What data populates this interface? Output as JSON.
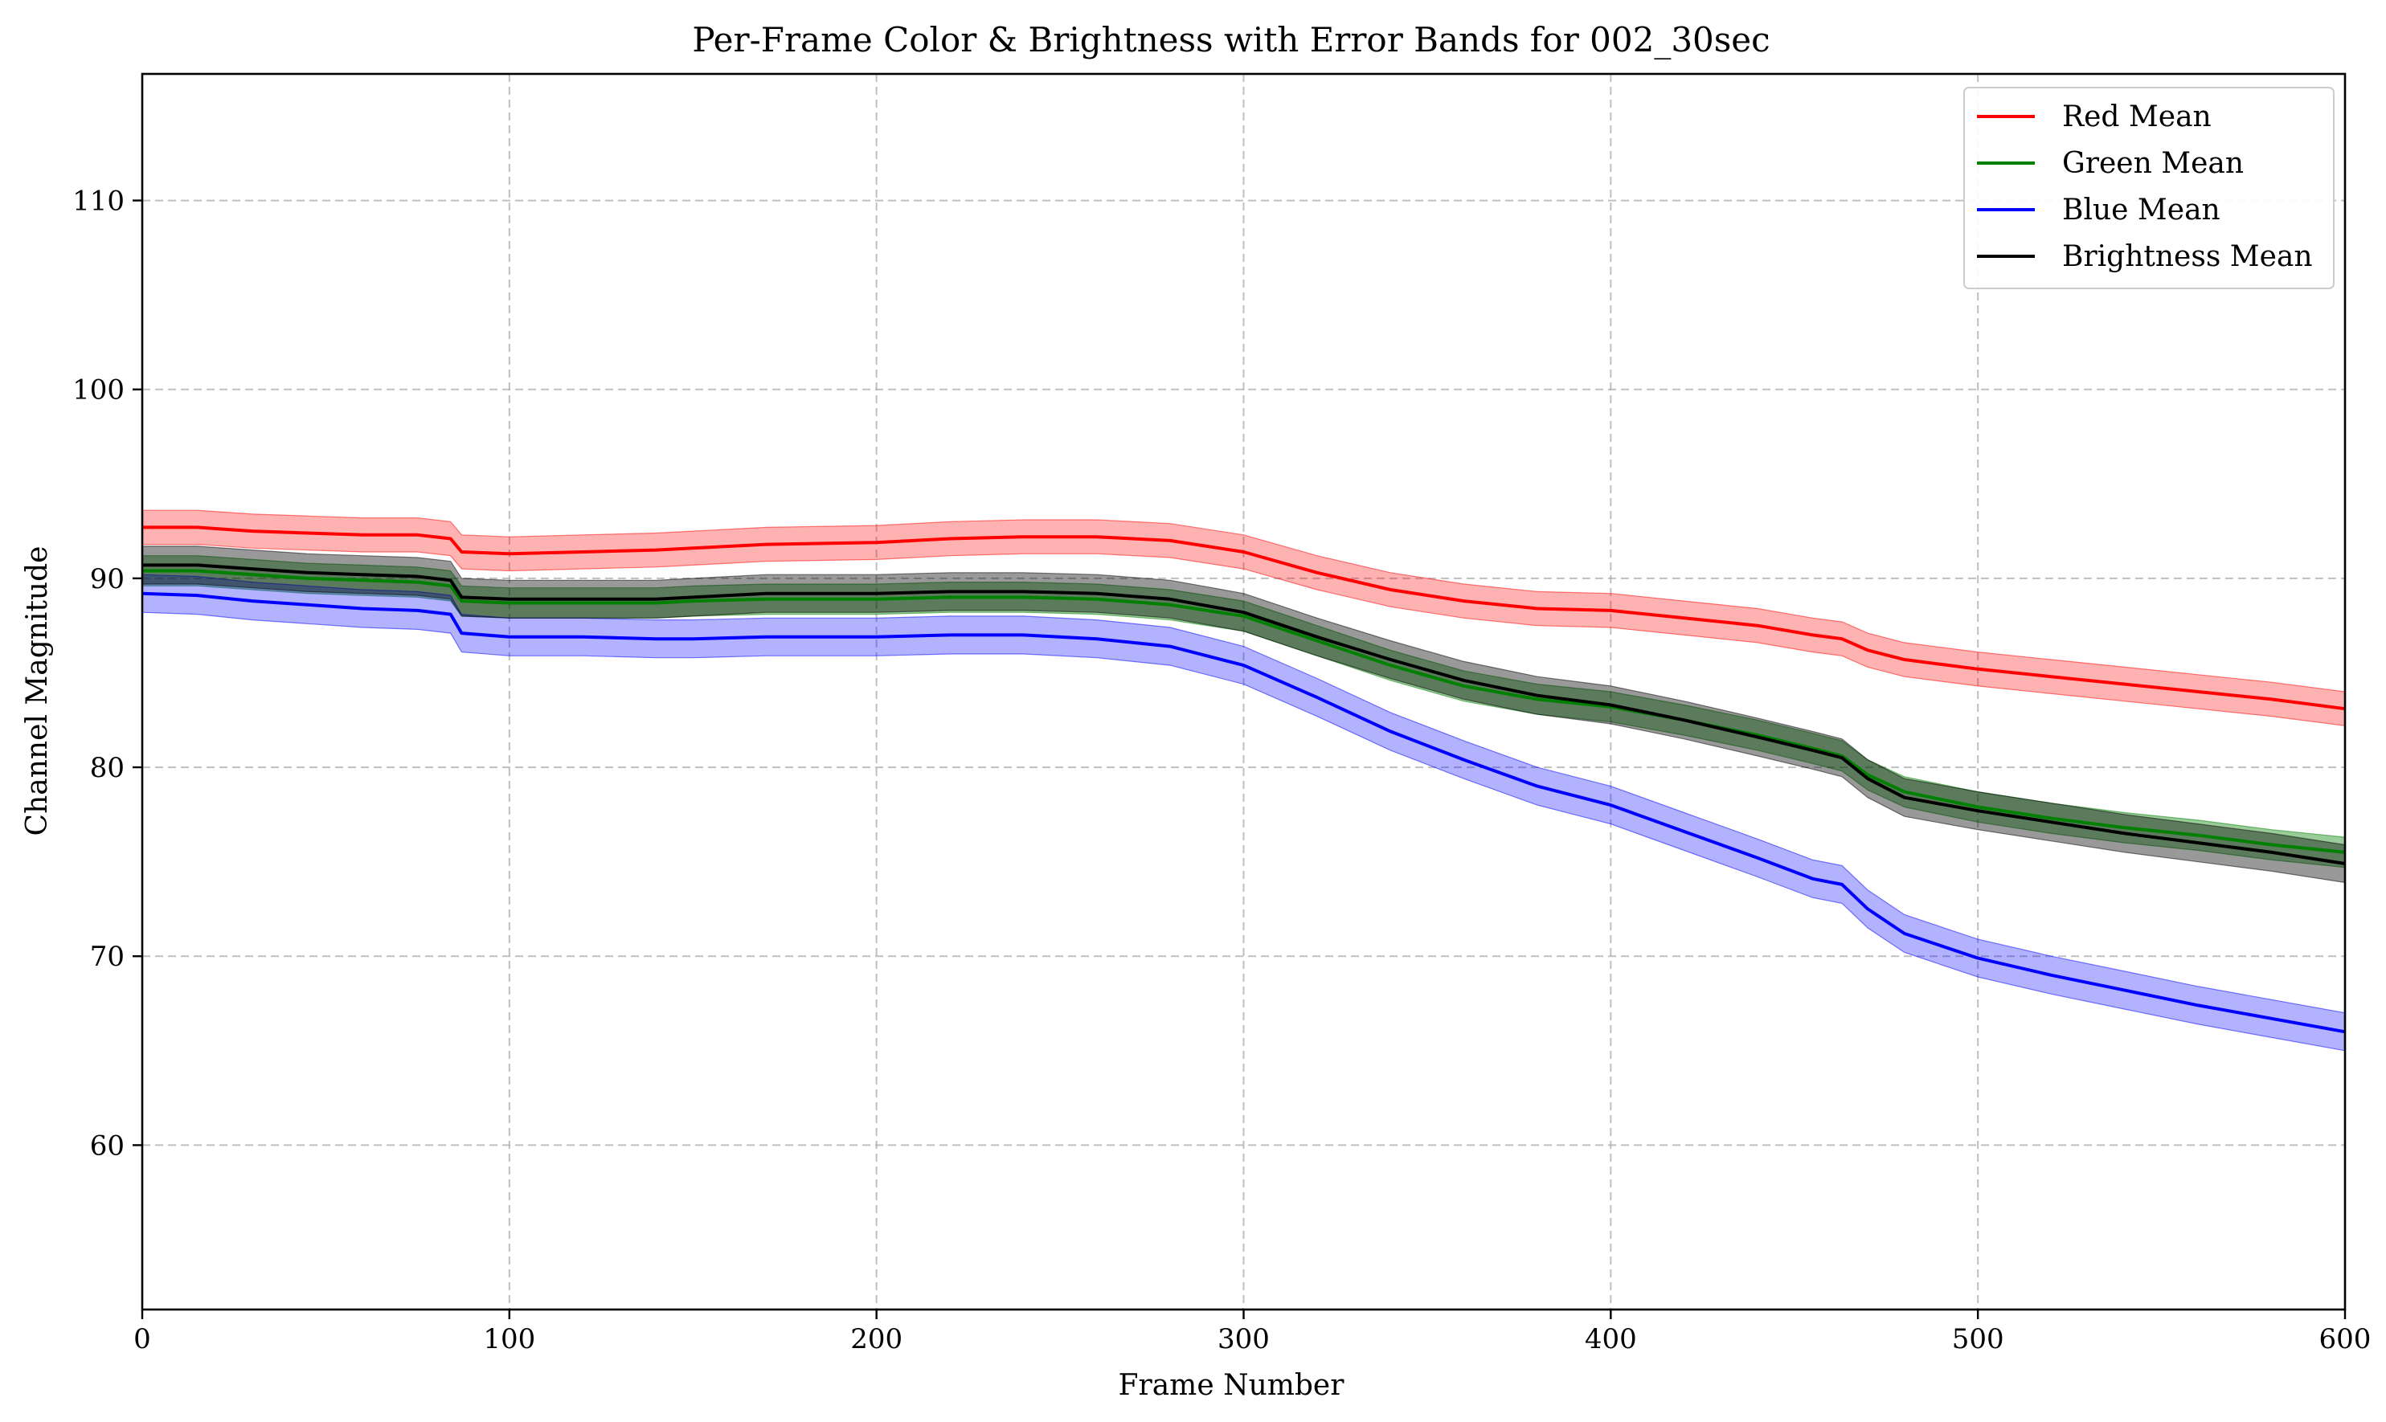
{
  "chart_data": {
    "type": "line",
    "title": "Per-Frame Color & Brightness with Error Bands for 002_30sec",
    "xlabel": "Frame Number",
    "ylabel": "Channel Magnitude",
    "xlim": [
      0,
      600
    ],
    "ylim": [
      51.3,
      116.7
    ],
    "xticks": [
      0,
      100,
      200,
      300,
      400,
      500,
      600
    ],
    "yticks": [
      60,
      70,
      80,
      90,
      100,
      110
    ],
    "grid": true,
    "legend_position": "top-right",
    "series": [
      {
        "name": "Red Mean",
        "color": "#ff0000",
        "band_alpha": 0.3,
        "x": [
          0,
          15,
          30,
          45,
          60,
          75,
          84,
          87,
          100,
          120,
          140,
          150,
          170,
          200,
          220,
          240,
          260,
          280,
          300,
          320,
          340,
          360,
          380,
          400,
          420,
          440,
          455,
          463,
          470,
          480,
          500,
          520,
          540,
          560,
          580,
          600
        ],
        "y": [
          92.7,
          92.7,
          92.5,
          92.4,
          92.3,
          92.3,
          92.1,
          91.4,
          91.3,
          91.4,
          91.5,
          91.6,
          91.8,
          91.9,
          92.1,
          92.2,
          92.2,
          92.0,
          91.4,
          90.3,
          89.4,
          88.8,
          88.4,
          88.3,
          87.9,
          87.5,
          87.0,
          86.8,
          86.2,
          85.7,
          85.2,
          84.8,
          84.4,
          84.0,
          83.6,
          83.1
        ],
        "err": [
          0.9,
          0.9,
          0.9,
          0.9,
          0.9,
          0.9,
          0.9,
          0.9,
          0.9,
          0.9,
          0.9,
          0.9,
          0.9,
          0.9,
          0.9,
          0.9,
          0.9,
          0.9,
          0.9,
          0.9,
          0.9,
          0.9,
          0.9,
          0.9,
          0.9,
          0.9,
          0.9,
          0.9,
          0.9,
          0.9,
          0.9,
          0.9,
          0.9,
          0.9,
          0.9,
          0.9
        ]
      },
      {
        "name": "Green Mean",
        "color": "#008000",
        "band_alpha": 0.4,
        "x": [
          0,
          15,
          30,
          45,
          60,
          75,
          84,
          87,
          100,
          120,
          140,
          150,
          170,
          200,
          220,
          240,
          260,
          280,
          300,
          320,
          340,
          360,
          380,
          400,
          420,
          440,
          455,
          463,
          470,
          480,
          500,
          520,
          540,
          560,
          580,
          600
        ],
        "y": [
          90.4,
          90.4,
          90.2,
          90.0,
          89.9,
          89.8,
          89.6,
          88.8,
          88.7,
          88.7,
          88.7,
          88.8,
          88.9,
          88.9,
          89.0,
          89.0,
          88.9,
          88.6,
          88.0,
          86.7,
          85.4,
          84.3,
          83.6,
          83.2,
          82.5,
          81.7,
          81.0,
          80.6,
          79.6,
          78.7,
          77.9,
          77.3,
          76.8,
          76.4,
          75.9,
          75.5
        ],
        "err": [
          0.8,
          0.8,
          0.8,
          0.8,
          0.8,
          0.8,
          0.8,
          0.8,
          0.8,
          0.8,
          0.8,
          0.8,
          0.8,
          0.8,
          0.8,
          0.8,
          0.8,
          0.8,
          0.8,
          0.8,
          0.8,
          0.8,
          0.8,
          0.8,
          0.8,
          0.8,
          0.8,
          0.8,
          0.8,
          0.8,
          0.8,
          0.8,
          0.8,
          0.8,
          0.8,
          0.8
        ]
      },
      {
        "name": "Blue Mean",
        "color": "#0000ff",
        "band_alpha": 0.3,
        "x": [
          0,
          15,
          30,
          45,
          60,
          75,
          84,
          87,
          100,
          120,
          140,
          150,
          170,
          200,
          220,
          240,
          260,
          280,
          300,
          320,
          340,
          360,
          380,
          400,
          420,
          440,
          455,
          463,
          470,
          480,
          500,
          520,
          540,
          560,
          580,
          600
        ],
        "y": [
          89.2,
          89.1,
          88.8,
          88.6,
          88.4,
          88.3,
          88.1,
          87.1,
          86.9,
          86.9,
          86.8,
          86.8,
          86.9,
          86.9,
          87.0,
          87.0,
          86.8,
          86.4,
          85.4,
          83.7,
          81.9,
          80.4,
          79.0,
          78.0,
          76.6,
          75.2,
          74.1,
          73.8,
          72.5,
          71.2,
          69.9,
          69.0,
          68.2,
          67.4,
          66.7,
          66.0
        ],
        "err": [
          1.0,
          1.0,
          1.0,
          1.0,
          1.0,
          1.0,
          1.0,
          1.0,
          1.0,
          1.0,
          1.0,
          1.0,
          1.0,
          1.0,
          1.0,
          1.0,
          1.0,
          1.0,
          1.0,
          1.0,
          1.0,
          1.0,
          1.0,
          1.0,
          1.0,
          1.0,
          1.0,
          1.0,
          1.0,
          1.0,
          1.0,
          1.0,
          1.0,
          1.0,
          1.0,
          1.0
        ]
      },
      {
        "name": "Brightness Mean",
        "color": "#000000",
        "band_alpha": 0.4,
        "x": [
          0,
          15,
          30,
          45,
          60,
          75,
          84,
          87,
          100,
          120,
          140,
          150,
          170,
          200,
          220,
          240,
          260,
          280,
          300,
          320,
          340,
          360,
          380,
          400,
          420,
          440,
          455,
          463,
          470,
          480,
          500,
          520,
          540,
          560,
          580,
          600
        ],
        "y": [
          90.7,
          90.7,
          90.5,
          90.3,
          90.2,
          90.1,
          89.9,
          89.0,
          88.9,
          88.9,
          88.9,
          89.0,
          89.2,
          89.2,
          89.3,
          89.3,
          89.2,
          88.9,
          88.2,
          86.9,
          85.7,
          84.6,
          83.8,
          83.3,
          82.5,
          81.6,
          80.9,
          80.5,
          79.4,
          78.4,
          77.7,
          77.1,
          76.5,
          76.0,
          75.5,
          74.9
        ],
        "err": [
          1.0,
          1.0,
          1.0,
          1.0,
          1.0,
          1.0,
          1.0,
          1.0,
          1.0,
          1.0,
          1.0,
          1.0,
          1.0,
          1.0,
          1.0,
          1.0,
          1.0,
          1.0,
          1.0,
          1.0,
          1.0,
          1.0,
          1.0,
          1.0,
          1.0,
          1.0,
          1.0,
          1.0,
          1.0,
          1.0,
          1.0,
          1.0,
          1.0,
          1.0,
          1.0,
          1.0
        ]
      }
    ]
  }
}
